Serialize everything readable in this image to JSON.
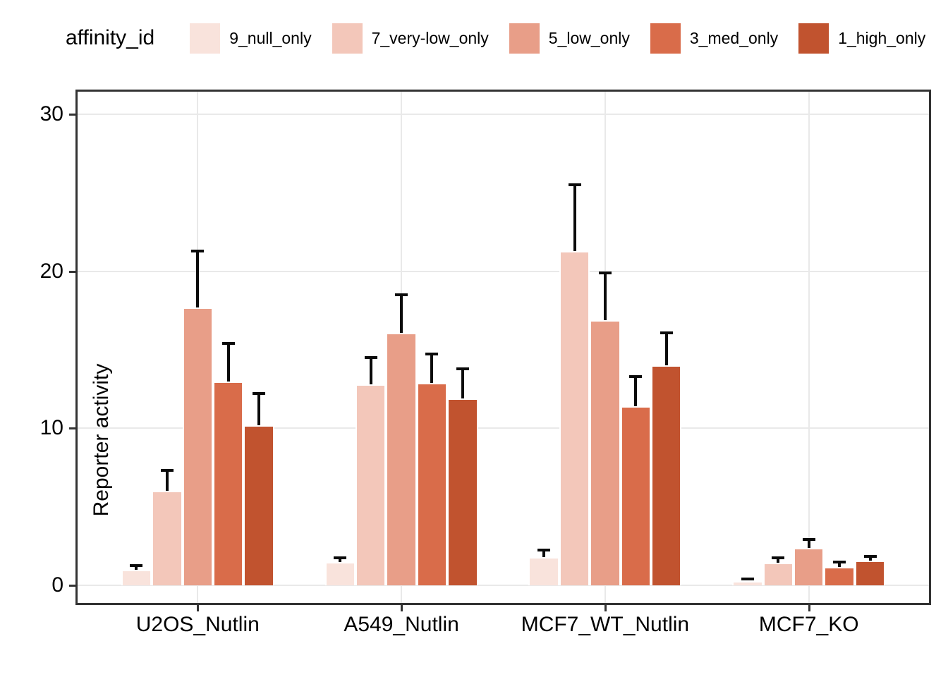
{
  "chart_data": {
    "type": "bar",
    "title": "",
    "legend_title": "affinity_id",
    "legend_position": "top",
    "xlabel": "",
    "ylabel": "Reporter activity",
    "categories": [
      "U2OS_Nutlin",
      "A549_Nutlin",
      "MCF7_WT_Nutlin",
      "MCF7_KO"
    ],
    "y_ticks": [
      0,
      10,
      20,
      30
    ],
    "ylim": [
      0,
      31.4
    ],
    "grid": "major gridlines only, light gray, horizontal at 0/10/20/30 and vertical at group centers",
    "error_bars": "upper whisker with cap, black",
    "series": [
      {
        "name": "9_null_only",
        "color": "#f9e3dc",
        "values": [
          1.0,
          1.5,
          1.8,
          0.25
        ],
        "error_top": [
          1.25,
          1.75,
          2.25,
          0.4
        ]
      },
      {
        "name": "7_very-low_only",
        "color": "#f3c7ba",
        "values": [
          6.0,
          12.8,
          21.3,
          1.45
        ],
        "error_top": [
          7.3,
          14.5,
          25.5,
          1.75
        ]
      },
      {
        "name": "5_low_only",
        "color": "#e89e88",
        "values": [
          17.7,
          16.1,
          16.9,
          2.4
        ],
        "error_top": [
          21.3,
          18.5,
          19.9,
          2.9
        ]
      },
      {
        "name": "3_med_only",
        "color": "#d96c4a",
        "values": [
          13.0,
          12.9,
          11.4,
          1.15
        ],
        "error_top": [
          15.4,
          14.75,
          13.3,
          1.5
        ]
      },
      {
        "name": "1_high_only",
        "color": "#c1532f",
        "values": [
          10.2,
          11.9,
          14.0,
          1.55
        ],
        "error_top": [
          12.2,
          13.8,
          16.1,
          1.85
        ]
      }
    ],
    "colors": {
      "axis_text": "#000000",
      "gridline": "#e9e9e9",
      "panel_border": "#333333",
      "error_bar": "#0a0a0a",
      "background": "#ffffff"
    }
  }
}
